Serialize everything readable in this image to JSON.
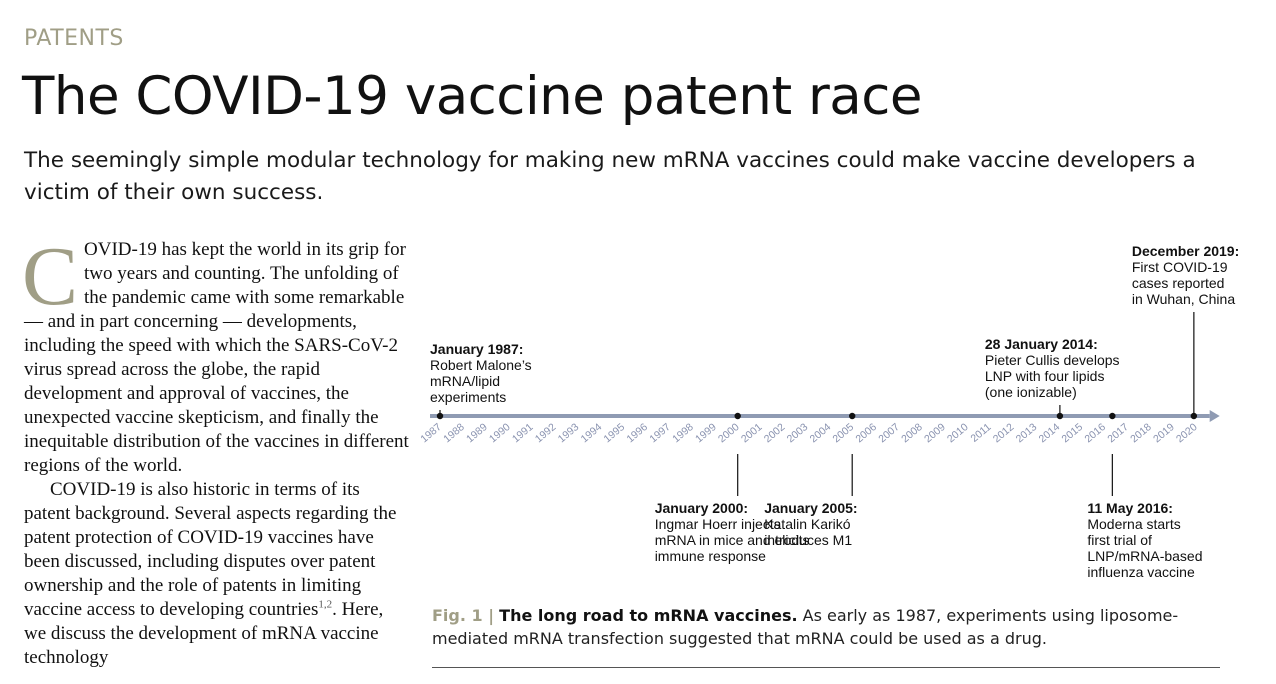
{
  "section_label": "PATENTS",
  "title": "The COVID-19 vaccine patent race",
  "standfirst": "The seemingly simple modular technology for making new mRNA vaccines could make vaccine developers a victim of their own success.",
  "body": {
    "drop_cap": "C",
    "p1": "OVID-19 has kept the world in its grip for two years and counting. The unfolding of the pandemic came with some remarkable — and in part concerning — developments, including the speed with which the SARS-CoV-2 virus spread across the globe, the rapid development and approval of vaccines, the unexpected vaccine skepticism, and finally the inequitable distribution of the vaccines in different regions of the world.",
    "p2": "COVID-19 is also historic in terms of its patent background. Several aspects regarding the patent protection of COVID-19 vaccines have been discussed, including disputes over patent ownership and the role of patents in limiting vaccine access to developing countries",
    "p2_refs": "1,2",
    "p2_tail": ". Here, we discuss the development of mRNA vaccine technology"
  },
  "timeline": {
    "years": [
      "1987",
      "1988",
      "1989",
      "1990",
      "1991",
      "1992",
      "1993",
      "1994",
      "1995",
      "1996",
      "1997",
      "1998",
      "1999",
      "2000",
      "2001",
      "2002",
      "2003",
      "2004",
      "2005",
      "2006",
      "2007",
      "2008",
      "2009",
      "2010",
      "2011",
      "2012",
      "2013",
      "2014",
      "2015",
      "2016",
      "2017",
      "2018",
      "2019",
      "2020"
    ],
    "events": [
      {
        "year": 1987.0,
        "side": "above",
        "date": "January 1987:",
        "lines": [
          "Robert Malone’s",
          "mRNA/lipid",
          "experiments"
        ]
      },
      {
        "year": 2000.0,
        "side": "below",
        "date": "January 2000:",
        "lines": [
          "Ingmar Hoerr injects",
          "mRNA in mice and elicits",
          "immune response"
        ]
      },
      {
        "year": 2005.0,
        "side": "below",
        "date": "January 2005:",
        "lines": [
          "Katalin Karikó",
          "introduces M1"
        ]
      },
      {
        "year": 2014.07,
        "side": "above",
        "date": "28 January 2014:",
        "lines": [
          "Pieter Cullis develops",
          "LNP with four lipids",
          "(one ionizable)"
        ]
      },
      {
        "year": 2016.36,
        "side": "below",
        "date": "11 May 2016:",
        "lines": [
          "Moderna starts",
          "first trial of",
          "LNP/mRNA-based",
          "influenza vaccine"
        ]
      },
      {
        "year": 2019.92,
        "side": "above",
        "date": "December 2019:",
        "lines": [
          "First COVID-19",
          "cases reported",
          "in Wuhan, China"
        ]
      }
    ]
  },
  "caption": {
    "fig_label": "Fig. 1 |",
    "bold": "The long road to mRNA vaccines.",
    "text": "As early as 1987, experiments using liposome-mediated mRNA transfection suggested that mRNA could be used as a drug."
  },
  "colors": {
    "accent": "#a09e86",
    "axis": "#8f9bb3",
    "year_label": "#8a93b0"
  }
}
